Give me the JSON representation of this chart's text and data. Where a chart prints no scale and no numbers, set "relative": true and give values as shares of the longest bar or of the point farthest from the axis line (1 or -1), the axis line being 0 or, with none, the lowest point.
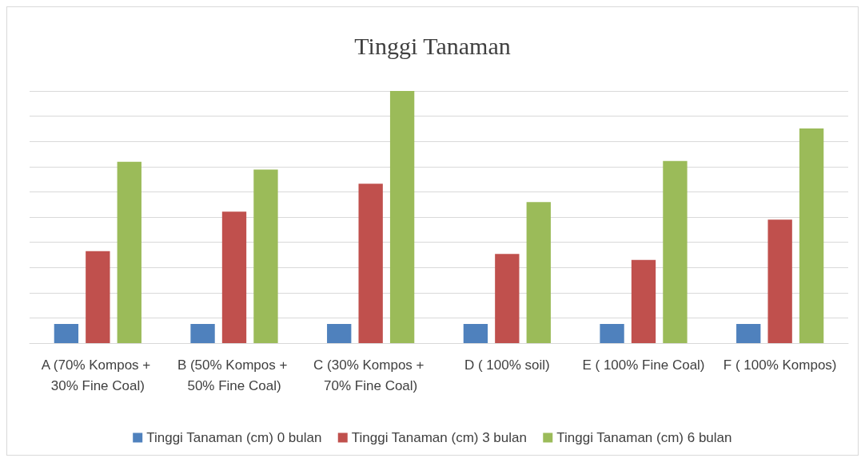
{
  "chart_data": {
    "type": "bar",
    "title": "Tinggi Tanaman",
    "relative": true,
    "grid": "y",
    "legend": "bottom",
    "categories": [
      "A (70% Kompos + 30% Fine Coal)",
      "B (50% Kompos + 50% Fine Coal)",
      "C (30% Kompos + 70% Fine Coal)",
      "D ( 100% soil)",
      "E ( 100% Fine Coal)",
      "F ( 100% Kompos)"
    ],
    "series": [
      {
        "name": "Tinggi Tanaman (cm) 0 bulan",
        "color": "#4f81bd",
        "values": [
          0.076,
          0.076,
          0.076,
          0.076,
          0.076,
          0.076
        ]
      },
      {
        "name": "Tinggi Tanaman (cm) 3 bulan",
        "color": "#c0504d",
        "values": [
          0.365,
          0.521,
          0.632,
          0.354,
          0.33,
          0.49
        ]
      },
      {
        "name": "Tinggi Tanaman (cm) 6 bulan",
        "color": "#9bbb59",
        "values": [
          0.719,
          0.688,
          1,
          0.559,
          0.722,
          0.851
        ]
      }
    ]
  }
}
